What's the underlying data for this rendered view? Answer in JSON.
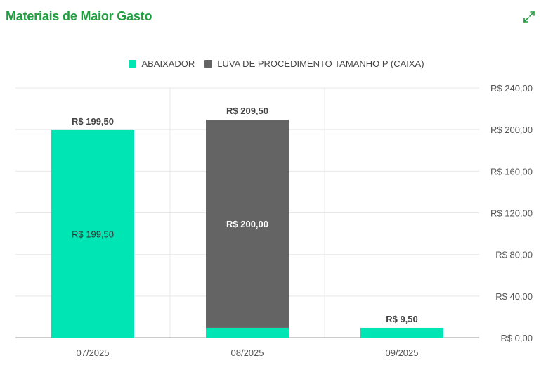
{
  "header": {
    "title": "Materiais de Maior Gasto",
    "expand_icon": "expand-arrows-icon"
  },
  "colors": {
    "title": "#1e9e3e",
    "series_1": "#00e5b4",
    "series_2": "#646464",
    "grid": "#e8e8e8",
    "axis_text": "#555555"
  },
  "chart_data": {
    "type": "bar",
    "stacked": true,
    "categories": [
      "07/2025",
      "08/2025",
      "09/2025"
    ],
    "series": [
      {
        "name": "ABAIXADOR",
        "values": [
          199.5,
          9.5,
          9.5
        ]
      },
      {
        "name": "LUVA DE PROCEDIMENTO TAMANHO P (CAIXA)",
        "values": [
          0,
          200,
          0
        ]
      }
    ],
    "segment_labels": [
      [
        "R$ 199,50",
        "",
        ""
      ],
      [
        "",
        "R$ 200,00",
        ""
      ]
    ],
    "total_labels": [
      "R$ 199,50",
      "R$ 209,50",
      "R$ 9,50"
    ],
    "y_ticks": [
      0,
      40,
      80,
      120,
      160,
      200,
      240
    ],
    "y_tick_labels": [
      "R$ 0,00",
      "R$ 40,00",
      "R$ 80,00",
      "R$ 120,00",
      "R$ 160,00",
      "R$ 200,00",
      "R$ 240,00"
    ],
    "ylim": [
      0,
      240
    ],
    "y_axis_position": "right",
    "legend_position": "top-center",
    "grid": true
  }
}
